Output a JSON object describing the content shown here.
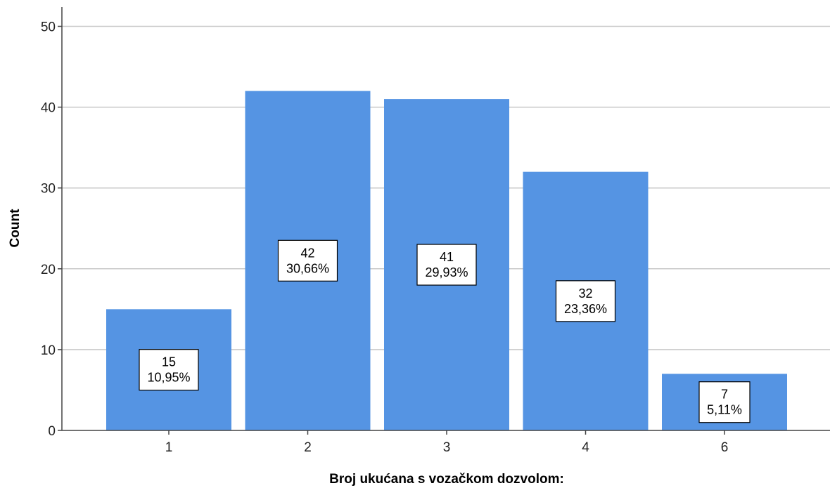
{
  "chart_data": {
    "type": "bar",
    "xlabel": "Broj ukućana s vozačkom dozvolom:",
    "ylabel": "Count",
    "categories": [
      "1",
      "2",
      "3",
      "4",
      "6"
    ],
    "values": [
      15,
      42,
      41,
      32,
      7
    ],
    "percent_labels": [
      "10,95%",
      "30,66%",
      "29,93%",
      "23,36%",
      "5,11%"
    ],
    "ylim": [
      0,
      52
    ],
    "yticks": [
      0,
      10,
      20,
      30,
      40,
      50
    ],
    "grid": true,
    "bar_color": "#5594e3",
    "grid_color": "#c8c8c8"
  }
}
